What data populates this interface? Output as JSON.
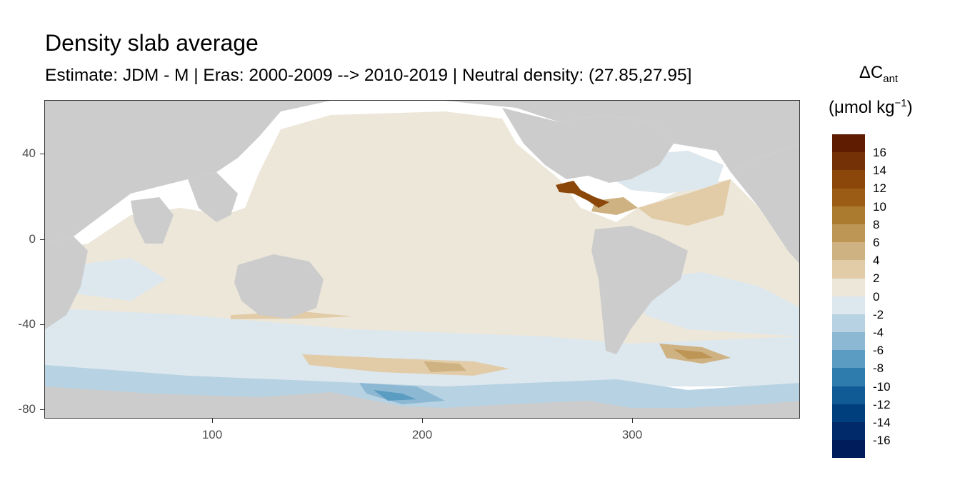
{
  "title": "Density slab average",
  "subtitle": "Estimate: JDM - M | Eras: 2000-2009 --> 2010-2019 | Neutral density: (27.85,27.95]",
  "legend": {
    "delta": "ΔC",
    "sub": "ant",
    "units_open": "(μmol kg",
    "units_sup": "−1",
    "units_close": ")",
    "labels": [
      "16",
      "14",
      "12",
      "10",
      "8",
      "6",
      "4",
      "2",
      "0",
      "-2",
      "-4",
      "-6",
      "-8",
      "-10",
      "-12",
      "-14",
      "-16"
    ],
    "colors": [
      "#5f1c01",
      "#743105",
      "#8a4709",
      "#9b5d15",
      "#ab7b2f",
      "#bd9655",
      "#cfb282",
      "#e1cca7",
      "#ede7da",
      "#dde7ee",
      "#b7d2e2",
      "#8cb8d3",
      "#5a9cc2",
      "#2e7bae",
      "#105b96",
      "#003f7d",
      "#002a6a",
      "#001c5a"
    ]
  },
  "axes": {
    "x_ticks": [
      "100",
      "200",
      "300"
    ],
    "y_ticks": [
      "40",
      "0",
      "-40",
      "-80"
    ]
  },
  "colors": {
    "land": "#cccccc",
    "ocean_near_zero": "#ede7da",
    "ocean_slight_negative": "#dde7ee",
    "panel_border": "#333333"
  }
}
